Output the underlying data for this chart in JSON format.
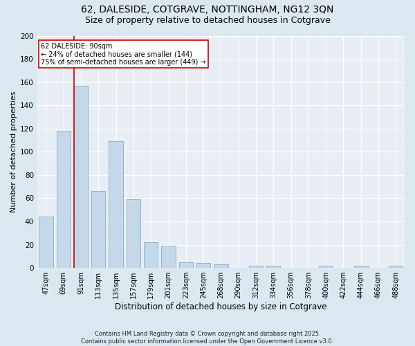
{
  "title1": "62, DALESIDE, COTGRAVE, NOTTINGHAM, NG12 3QN",
  "title2": "Size of property relative to detached houses in Cotgrave",
  "xlabel": "Distribution of detached houses by size in Cotgrave",
  "ylabel": "Number of detached properties",
  "footer": "Contains HM Land Registry data © Crown copyright and database right 2025.\nContains public sector information licensed under the Open Government Licence v3.0.",
  "categories": [
    "47sqm",
    "69sqm",
    "91sqm",
    "113sqm",
    "135sqm",
    "157sqm",
    "179sqm",
    "201sqm",
    "223sqm",
    "245sqm",
    "268sqm",
    "290sqm",
    "312sqm",
    "334sqm",
    "356sqm",
    "378sqm",
    "400sqm",
    "422sqm",
    "444sqm",
    "466sqm",
    "488sqm"
  ],
  "values": [
    44,
    118,
    157,
    66,
    109,
    59,
    22,
    19,
    5,
    4,
    3,
    0,
    2,
    2,
    0,
    0,
    2,
    0,
    2,
    0,
    2
  ],
  "bar_color": "#c5d8ea",
  "bar_edge_color": "#8ab4d4",
  "vline_index": 2,
  "vline_color": "#cc0000",
  "annotation_text": "62 DALESIDE: 90sqm\n← 24% of detached houses are smaller (144)\n75% of semi-detached houses are larger (449) →",
  "bg_color": "#dce8f0",
  "plot_bg": "#e8eef5",
  "grid_color": "#ffffff",
  "ylim": [
    0,
    200
  ],
  "yticks": [
    0,
    20,
    40,
    60,
    80,
    100,
    120,
    140,
    160,
    180,
    200
  ],
  "title_fontsize": 10,
  "subtitle_fontsize": 9,
  "axis_label_fontsize": 8,
  "tick_fontsize": 7,
  "annotation_fontsize": 7,
  "footer_fontsize": 6
}
